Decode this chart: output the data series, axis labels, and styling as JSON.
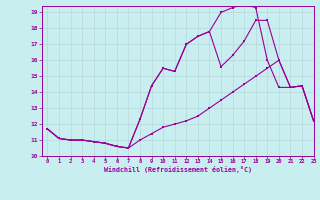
{
  "xlabel": "Windchill (Refroidissement éolien,°C)",
  "bg_color": "#c8eef0",
  "line_color": "#990099",
  "grid_color": "#b8d8da",
  "xlim": [
    -0.5,
    23
  ],
  "ylim": [
    10,
    19.4
  ],
  "xticks": [
    0,
    1,
    2,
    3,
    4,
    5,
    6,
    7,
    8,
    9,
    10,
    11,
    12,
    13,
    14,
    15,
    16,
    17,
    18,
    19,
    20,
    21,
    22,
    23
  ],
  "yticks": [
    10,
    11,
    12,
    13,
    14,
    15,
    16,
    17,
    18,
    19
  ],
  "line1_x": [
    0,
    1,
    2,
    3,
    4,
    5,
    6,
    7,
    8,
    9,
    10,
    11,
    12,
    13,
    14,
    15,
    16,
    17,
    18,
    19,
    20,
    21,
    22,
    23
  ],
  "line1_y": [
    11.7,
    11.1,
    11.0,
    11.0,
    10.9,
    10.8,
    10.6,
    10.5,
    11.0,
    11.4,
    11.8,
    12.0,
    12.2,
    12.5,
    13.0,
    13.5,
    14.0,
    14.5,
    15.0,
    15.5,
    16.0,
    14.3,
    14.4,
    12.2
  ],
  "line2_x": [
    0,
    1,
    2,
    3,
    4,
    5,
    6,
    7,
    8,
    9,
    10,
    11,
    12,
    13,
    14,
    15,
    16,
    17,
    18,
    19,
    20,
    21,
    22,
    23
  ],
  "line2_y": [
    11.7,
    11.1,
    11.0,
    11.0,
    10.9,
    10.8,
    10.6,
    10.5,
    12.3,
    14.4,
    15.5,
    15.3,
    17.0,
    17.5,
    17.8,
    15.6,
    16.3,
    17.2,
    18.5,
    18.5,
    16.0,
    14.3,
    14.4,
    12.2
  ],
  "line3_x": [
    0,
    1,
    2,
    3,
    4,
    5,
    6,
    7,
    8,
    9,
    10,
    11,
    12,
    13,
    14,
    15,
    16,
    17,
    18,
    19,
    20,
    21,
    22,
    23
  ],
  "line3_y": [
    11.7,
    11.1,
    11.0,
    11.0,
    10.9,
    10.8,
    10.6,
    10.5,
    12.3,
    14.4,
    15.5,
    15.3,
    17.0,
    17.5,
    17.8,
    19.0,
    19.3,
    19.5,
    19.3,
    16.0,
    14.3,
    14.3,
    14.4,
    12.2
  ]
}
